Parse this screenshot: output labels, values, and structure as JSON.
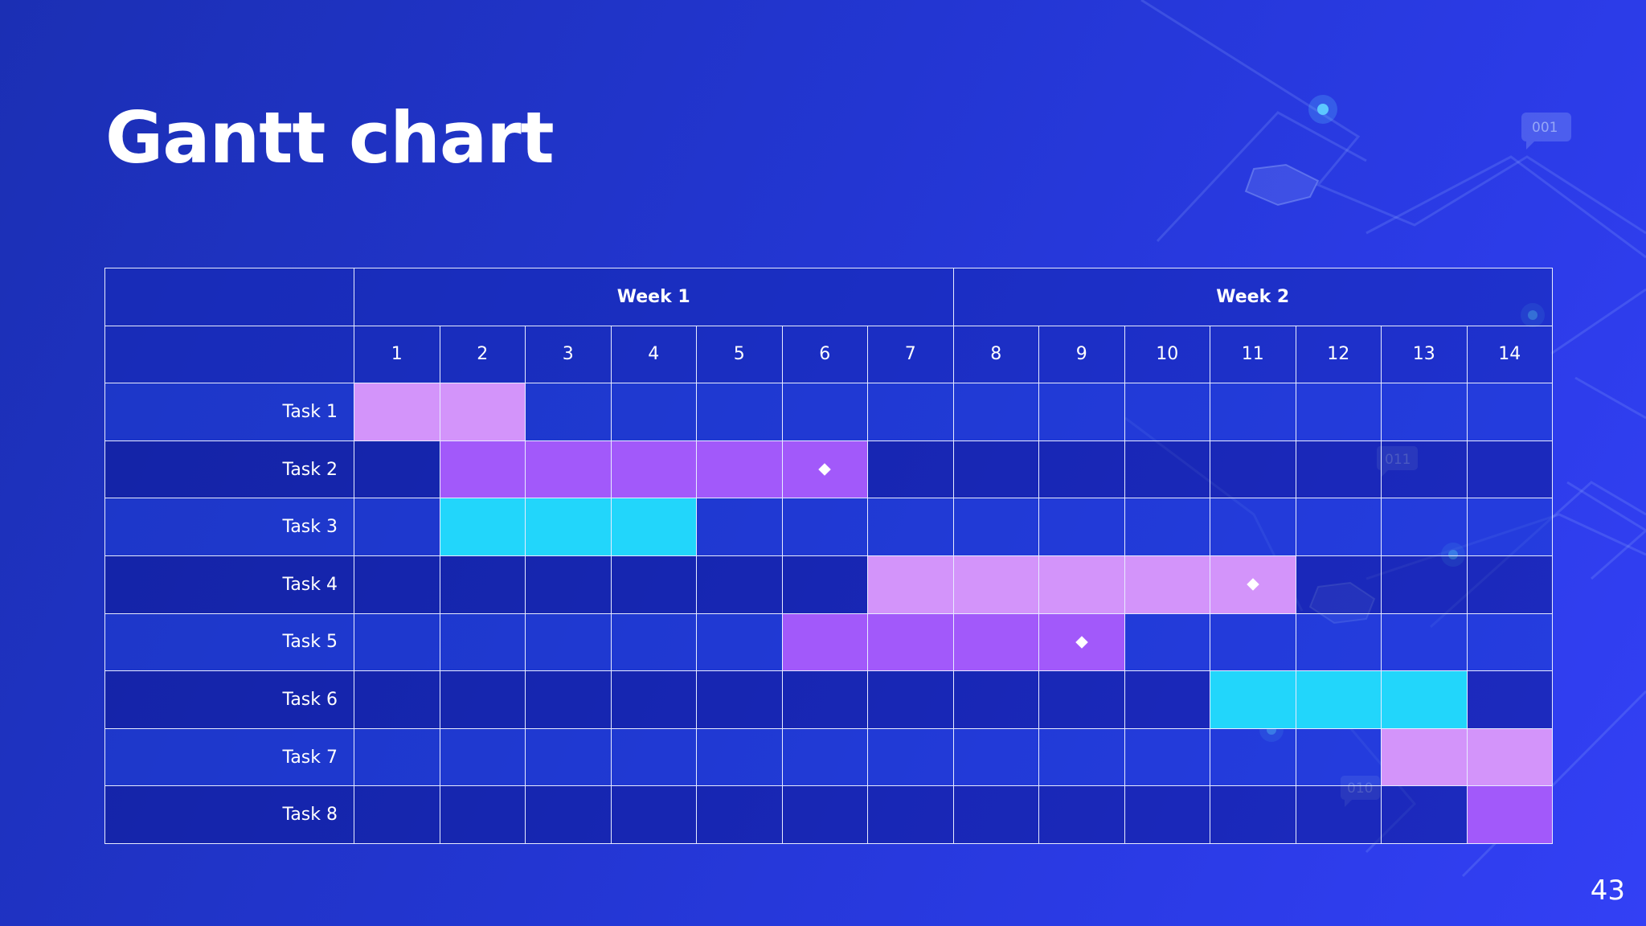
{
  "slide": {
    "title": "Gantt chart",
    "page_number": "43"
  },
  "colors": {
    "lavender": "#d394fa",
    "violet": "#a259fa",
    "cyan": "#22d6fb",
    "grid": "#e8ecff",
    "background": "#2336d2"
  },
  "decorations": {
    "tags": [
      "001",
      "011",
      "010"
    ]
  },
  "chart_data": {
    "type": "table",
    "weeks": [
      {
        "label": "Week 1",
        "days": [
          1,
          2,
          3,
          4,
          5,
          6,
          7
        ]
      },
      {
        "label": "Week 2",
        "days": [
          8,
          9,
          10,
          11,
          12,
          13,
          14
        ]
      }
    ],
    "days": [
      "1",
      "2",
      "3",
      "4",
      "5",
      "6",
      "7",
      "8",
      "9",
      "10",
      "11",
      "12",
      "13",
      "14"
    ],
    "tasks": [
      {
        "name": "Task 1",
        "start": 1,
        "end": 2,
        "color": "lavender",
        "milestone": null
      },
      {
        "name": "Task 2",
        "start": 2,
        "end": 6,
        "color": "violet",
        "milestone": 6
      },
      {
        "name": "Task 3",
        "start": 2,
        "end": 4,
        "color": "cyan",
        "milestone": null
      },
      {
        "name": "Task 4",
        "start": 7,
        "end": 11,
        "color": "lavender",
        "milestone": 11
      },
      {
        "name": "Task 5",
        "start": 6,
        "end": 9,
        "color": "violet",
        "milestone": 9
      },
      {
        "name": "Task 6",
        "start": 11,
        "end": 13,
        "color": "cyan",
        "milestone": null
      },
      {
        "name": "Task 7",
        "start": 13,
        "end": 14,
        "color": "lavender",
        "milestone": null
      },
      {
        "name": "Task 8",
        "start": 14,
        "end": 14,
        "color": "violet",
        "milestone": null
      }
    ]
  }
}
